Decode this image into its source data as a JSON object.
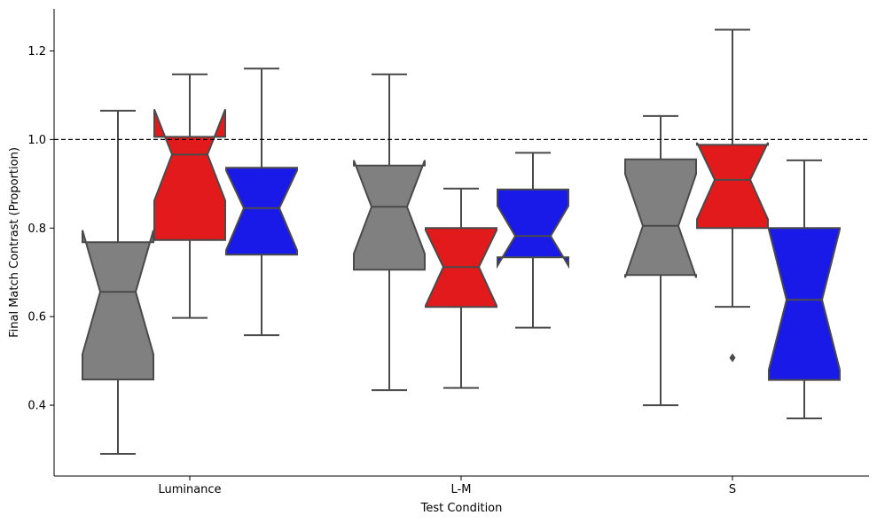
{
  "chart_data": {
    "type": "box",
    "notched": true,
    "xlabel": "Test Condition",
    "ylabel": "Final Match Contrast (Proportion)",
    "categories": [
      "Luminance",
      "L-M",
      "S"
    ],
    "ylim": [
      0.24,
      1.295
    ],
    "yticks": [
      0.4,
      0.6,
      0.8,
      1.0,
      1.2
    ],
    "ytick_labels": [
      "0.4",
      "0.6",
      "0.8",
      "1.0",
      "1.2"
    ],
    "reference_line": {
      "y": 1.0,
      "style": "dashed"
    },
    "grid": false,
    "legend": "none",
    "series_colors": [
      "#808080",
      "#e31a1c",
      "#1a1ae8"
    ],
    "edge_color": "#4a4a4a",
    "groups": [
      {
        "category": "Luminance",
        "boxes": [
          {
            "color": "#808080",
            "whislo": 0.29,
            "q1": 0.458,
            "notch_lo": 0.515,
            "median": 0.656,
            "notch_hi": 0.795,
            "q3": 0.768,
            "whishi": 1.065,
            "fliers": []
          },
          {
            "color": "#e31a1c",
            "whislo": 0.597,
            "q1": 0.773,
            "notch_lo": 0.862,
            "median": 0.966,
            "notch_hi": 1.068,
            "q3": 1.006,
            "whishi": 1.147,
            "fliers": []
          },
          {
            "color": "#1a1ae8",
            "whislo": 0.558,
            "q1": 0.74,
            "notch_lo": 0.75,
            "median": 0.845,
            "notch_hi": 0.93,
            "q3": 0.936,
            "whishi": 1.16,
            "fliers": []
          }
        ]
      },
      {
        "category": "L-M",
        "boxes": [
          {
            "color": "#808080",
            "whislo": 0.434,
            "q1": 0.706,
            "notch_lo": 0.742,
            "median": 0.848,
            "notch_hi": 0.953,
            "q3": 0.941,
            "whishi": 1.147,
            "fliers": []
          },
          {
            "color": "#e31a1c",
            "whislo": 0.439,
            "q1": 0.622,
            "notch_lo": 0.625,
            "median": 0.712,
            "notch_hi": 0.795,
            "q3": 0.8,
            "whishi": 0.889,
            "fliers": []
          },
          {
            "color": "#1a1ae8",
            "whislo": 0.575,
            "q1": 0.734,
            "notch_lo": 0.715,
            "median": 0.782,
            "notch_hi": 0.85,
            "q3": 0.887,
            "whishi": 0.97,
            "fliers": []
          }
        ]
      },
      {
        "category": "S",
        "boxes": [
          {
            "color": "#808080",
            "whislo": 0.4,
            "q1": 0.694,
            "notch_lo": 0.688,
            "median": 0.805,
            "notch_hi": 0.922,
            "q3": 0.955,
            "whishi": 1.053,
            "fliers": []
          },
          {
            "color": "#e31a1c",
            "whislo": 0.622,
            "q1": 0.8,
            "notch_lo": 0.82,
            "median": 0.909,
            "notch_hi": 0.993,
            "q3": 0.988,
            "whishi": 1.248,
            "fliers": [
              0.507
            ]
          },
          {
            "color": "#1a1ae8",
            "whislo": 0.37,
            "q1": 0.457,
            "notch_lo": 0.48,
            "median": 0.638,
            "notch_hi": 0.797,
            "q3": 0.8,
            "whishi": 0.953,
            "fliers": []
          }
        ]
      }
    ]
  }
}
